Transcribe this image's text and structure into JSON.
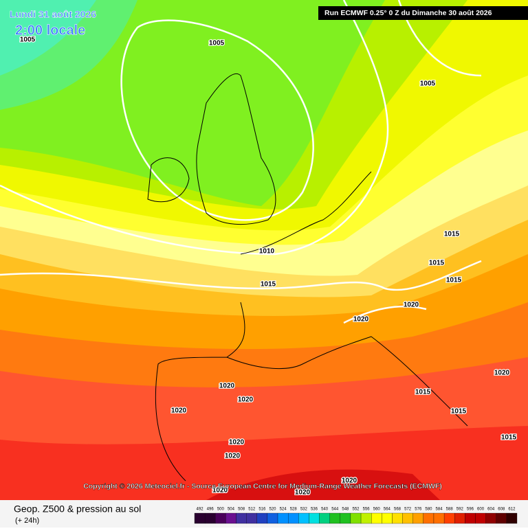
{
  "header": {
    "date": "Lundi 31 août 2026",
    "time": "2:00 locale",
    "run": "Run ECMWF 0.25° 0 Z du Dimanche 30 août 2026"
  },
  "isobar_labels": [
    "1005",
    "1005",
    "1005",
    "1010",
    "1015",
    "1015",
    "1015",
    "1015",
    "1020",
    "1020",
    "1020",
    "1020",
    "1020",
    "1020",
    "1020",
    "1015",
    "1015",
    "1020",
    "1015",
    "1020",
    "1020",
    "1020"
  ],
  "copyright": "Copyright © 2026 Meteociel.fr - Source European Centre for Medium-Range Weather Forecasts (ECMWF)",
  "footer": {
    "title": "Geop. Z500 & pression au sol",
    "subtitle": "(+ 24h)"
  },
  "scale": {
    "labels": [
      492,
      496,
      500,
      504,
      508,
      512,
      516,
      520,
      524,
      528,
      532,
      536,
      540,
      544,
      548,
      552,
      556,
      560,
      564,
      568,
      572,
      576,
      580,
      584,
      588,
      592,
      596,
      600,
      604,
      608,
      612
    ]
  }
}
